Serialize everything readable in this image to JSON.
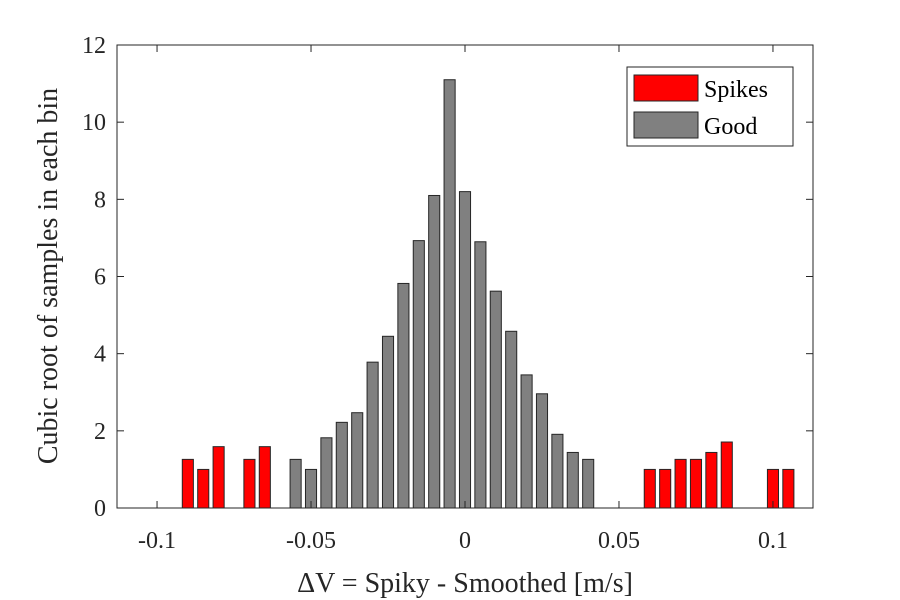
{
  "chart_data": {
    "type": "bar",
    "title": "",
    "xlabel": "ΔV = Spiky - Smoothed [m/s]",
    "ylabel": "Cubic root of samples in each bin",
    "xlim": [
      -0.113,
      0.113
    ],
    "ylim": [
      0,
      12
    ],
    "xticks": [
      -0.1,
      -0.05,
      0,
      0.05,
      0.1
    ],
    "xtick_labels": [
      "-0.1",
      "-0.05",
      "0",
      "0.05",
      "0.1"
    ],
    "yticks": [
      0,
      2,
      4,
      6,
      8,
      10,
      12
    ],
    "ytick_labels": [
      "0",
      "2",
      "4",
      "6",
      "8",
      "10",
      "12"
    ],
    "bin_width": 0.005,
    "grid": false,
    "legend_position": "top-right",
    "series": [
      {
        "name": "Spikes",
        "color": "#ff0000",
        "x": [
          -0.09,
          -0.085,
          -0.08,
          -0.07,
          -0.065,
          0.06,
          0.065,
          0.07,
          0.075,
          0.08,
          0.085,
          0.1,
          0.105
        ],
        "values": [
          1.26,
          1.0,
          1.59,
          1.26,
          1.59,
          1.0,
          1.0,
          1.26,
          1.26,
          1.44,
          1.71,
          1.0,
          1.0
        ]
      },
      {
        "name": "Good",
        "color": "#808080",
        "x": [
          -0.055,
          -0.05,
          -0.045,
          -0.04,
          -0.035,
          -0.03,
          -0.025,
          -0.02,
          -0.015,
          -0.01,
          -0.005,
          0,
          0.005,
          0.01,
          0.015,
          0.02,
          0.025,
          0.03,
          0.035,
          0.04,
          0.045
        ],
        "values": [
          1.26,
          1.0,
          1.82,
          2.22,
          2.47,
          3.78,
          4.45,
          5.82,
          6.93,
          8.1,
          11.1,
          8.2,
          6.9,
          5.62,
          4.58,
          3.45,
          2.96,
          1.91,
          1.44,
          1.26,
          0
        ]
      }
    ]
  }
}
